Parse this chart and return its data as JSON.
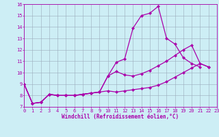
{
  "title": "",
  "xlabel": "Windchill (Refroidissement éolien,°C)",
  "ylabel": "",
  "bg_color": "#cdeef5",
  "line_color": "#aa00aa",
  "grid_color": "#99aabb",
  "xmin": 0,
  "xmax": 23,
  "ymin": 7,
  "ymax": 16,
  "hours": [
    0,
    1,
    2,
    3,
    4,
    5,
    6,
    7,
    8,
    9,
    10,
    11,
    12,
    13,
    14,
    15,
    16,
    17,
    18,
    19,
    20,
    21,
    22,
    23
  ],
  "line1": [
    9.0,
    7.3,
    7.4,
    8.1,
    8.0,
    8.0,
    8.0,
    8.1,
    8.2,
    8.3,
    9.7,
    10.9,
    11.2,
    13.9,
    15.0,
    15.2,
    15.8,
    13.0,
    12.5,
    11.3,
    10.8,
    10.5,
    null,
    null
  ],
  "line2": [
    9.0,
    7.3,
    7.4,
    8.1,
    8.0,
    8.0,
    8.0,
    8.1,
    8.2,
    8.3,
    9.7,
    10.1,
    9.8,
    9.7,
    9.9,
    10.2,
    10.6,
    11.0,
    11.5,
    12.0,
    12.4,
    10.8,
    10.5,
    null
  ],
  "line3": [
    9.0,
    7.3,
    7.4,
    8.1,
    8.0,
    8.0,
    8.0,
    8.1,
    8.2,
    8.3,
    8.4,
    8.3,
    8.4,
    8.5,
    8.6,
    8.7,
    8.9,
    9.2,
    9.6,
    10.0,
    10.4,
    10.8,
    10.5,
    null
  ],
  "marker": "D",
  "markersize": 2.2,
  "linewidth": 0.9,
  "tick_fontsize": 5.0,
  "xlabel_fontsize": 5.5
}
